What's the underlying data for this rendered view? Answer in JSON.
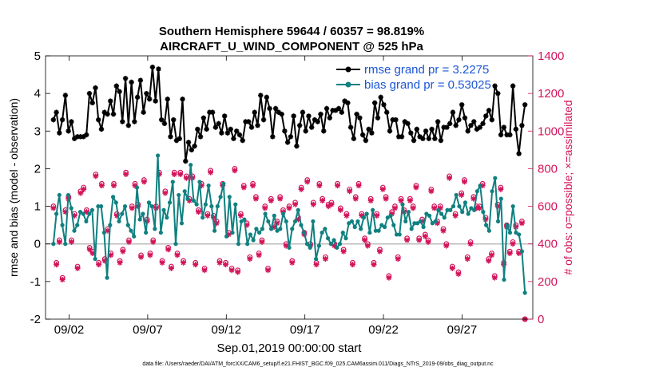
{
  "colors": {
    "rmse": "#000000",
    "bias": "#108080",
    "obs": "#d3145a",
    "legend_text": "#1b56d6",
    "zero_line": "#bbbbbb"
  },
  "chart_data": {
    "type": "line",
    "title": "Southern Hemisphere 59644 / 60357 = 98.819%",
    "subtitle": "AIRCRAFT_U_WIND_COMPONENT @ 525 hPa",
    "xlabel": "Sep.01,2019 00:00:00 start",
    "ylabel_left": "rmse and bias (model - observation)",
    "ylabel_right": "# of obs: o=possible; ×=assimilated",
    "footnote": "data file: /Users/raeder/DAI/ATM_forcXX/CAM6_setup/f.e21.FHIST_BGC.f09_025.CAM6assim.011/Diags_NTrS_2019-09/obs_diag_output.nc",
    "xlim": [
      0.5,
      31.5
    ],
    "ylim_left": [
      -2,
      5
    ],
    "ylim_right": [
      0,
      1400
    ],
    "x_ticks": [
      2,
      7,
      12,
      17,
      22,
      27
    ],
    "x_tick_labels": [
      "09/02",
      "09/07",
      "09/12",
      "09/17",
      "09/22",
      "09/27"
    ],
    "y_ticks_left": [
      -2,
      -1,
      0,
      1,
      2,
      3,
      4,
      5
    ],
    "y_tick_labels_left": [
      "-2",
      "-1",
      "0",
      "1",
      "2",
      "3",
      "4",
      "5"
    ],
    "y_ticks_right": [
      0,
      200,
      400,
      600,
      800,
      1000,
      1200,
      1400
    ],
    "y_tick_labels_right": [
      "0",
      "200",
      "400",
      "600",
      "800",
      "1000",
      "1200",
      "1400"
    ],
    "legend": {
      "position": "top-right",
      "entries": [
        "rmse grand pr = 3.2275",
        "bias grand pr = 0.53025"
      ]
    },
    "series": [
      {
        "name": "rmse",
        "axis": "left",
        "marker": "star",
        "values": [
          3.3,
          3.5,
          2.95,
          3.3,
          3.95,
          3.0,
          3.25,
          2.8,
          2.85,
          2.85,
          2.85,
          2.9,
          4.0,
          3.75,
          4.15,
          3.3,
          3.05,
          3.5,
          3.45,
          3.8,
          3.45,
          4.2,
          4.05,
          3.25,
          4.4,
          3.15,
          4.3,
          3.25,
          3.9,
          4.35,
          3.5,
          4.0,
          3.85,
          4.7,
          3.8,
          4.65,
          3.3,
          3.2,
          3.85,
          2.85,
          3.3,
          2.75,
          2.8,
          3.85,
          2.2,
          2.7,
          2.5,
          2.6,
          3.05,
          2.85,
          3.35,
          3.05,
          3.5,
          3.5,
          3.1,
          3.2,
          2.95,
          3.4,
          2.95,
          3.05,
          2.8,
          3.0,
          2.9,
          2.75,
          3.25,
          3.25,
          3.1,
          3.5,
          3.15,
          3.95,
          3.3,
          3.9,
          3.6,
          2.85,
          3.6,
          3.5,
          3.45,
          3.0,
          2.7,
          2.85,
          3.4,
          2.6,
          3.15,
          3.5,
          3.0,
          3.4,
          3.1,
          3.3,
          3.25,
          3.45,
          3.0,
          3.6,
          3.35,
          3.55,
          3.55,
          3.6,
          3.5,
          3.8,
          3.75,
          3.1,
          2.8,
          3.45,
          3.35,
          2.9,
          2.75,
          3.05,
          2.95,
          3.75,
          3.35,
          3.9,
          3.7,
          3.5,
          3.0,
          3.3,
          3.3,
          2.85,
          2.85,
          3.25,
          3.2,
          2.95,
          2.75,
          3.05,
          2.85,
          2.8,
          3.0,
          2.8,
          3.05,
          2.8,
          3.25,
          2.75,
          3.1,
          3.1,
          3.2,
          3.5,
          3.15,
          3.3,
          3.7,
          3.35,
          3.0,
          3.15,
          3.25,
          3.05,
          3.1,
          3.2,
          3.4,
          3.55,
          3.3,
          4.2,
          4.0,
          2.9,
          3.1,
          2.9,
          2.9,
          4.2,
          3.05,
          2.4,
          3.15,
          3.7
        ]
      },
      {
        "name": "bias",
        "axis": "left",
        "marker": "dot",
        "values": [
          0.0,
          0.8,
          1.3,
          0.5,
          0.0,
          1.3,
          0.95,
          0.35,
          0.5,
          0.85,
          0.8,
          0.6,
          0.8,
          0.9,
          -0.4,
          1.0,
          1.0,
          0.3,
          -0.9,
          0.5,
          1.25,
          1.1,
          0.6,
          0.8,
          1.0,
          0.5,
          0.35,
          0.2,
          1.5,
          0.65,
          0.8,
          0.3,
          1.1,
          1.0,
          0.4,
          2.35,
          0.3,
          0.9,
          0.7,
          1.1,
          1.65,
          0.0,
          1.3,
          0.55,
          1.4,
          1.2,
          2.1,
          1.15,
          1.05,
          1.65,
          0.7,
          1.05,
          1.55,
          1.0,
          0.35,
          1.0,
          1.25,
          1.6,
          0.2,
          1.25,
          0.3,
          1.05,
          0.0,
          0.6,
          0.65,
          0.0,
          0.25,
          0.1,
          0.4,
          0.3,
          0.4,
          0.8,
          0.6,
          0.4,
          0.75,
          0.35,
          0.4,
          0.8,
          0.6,
          -0.1,
          0.4,
          0.6,
          0.9,
          0.5,
          0.3,
          0.0,
          -0.1,
          0.6,
          -0.4,
          -0.05,
          0.3,
          0.4,
          0.15,
          0.0,
          0.1,
          -0.1,
          0.0,
          0.3,
          0.15,
          0.55,
          0.6,
          0.45,
          0.6,
          0.4,
          0.7,
          0.8,
          0.3,
          0.9,
          0.35,
          0.35,
          0.5,
          0.45,
          0.7,
          0.75,
          0.5,
          0.25,
          0.25,
          1.05,
          0.6,
          0.85,
          0.4,
          0.55,
          0.55,
          0.6,
          0.45,
          0.8,
          0.75,
          0.55,
          0.6,
          0.9,
          0.8,
          0.7,
          0.9,
          0.9,
          1.0,
          1.3,
          1.0,
          0.85,
          1.1,
          0.8,
          0.95,
          0.9,
          1.4,
          1.55,
          0.85,
          0.5,
          0.35,
          1.4,
          1.75,
          0.6,
          1.2,
          -0.95,
          0.5,
          0.3,
          1.0,
          0.3,
          0.25,
          -0.2,
          -1.3
        ]
      },
      {
        "name": "obs possible",
        "axis": "right",
        "marker": "circle",
        "values": [
          600,
          300,
          420,
          220,
          580,
          650,
          420,
          560,
          280,
          680,
          700,
          580,
          380,
          360,
          770,
          300,
          720,
          320,
          480,
          350,
          720,
          560,
          310,
          370,
          780,
          420,
          600,
          720,
          610,
          340,
          740,
          530,
          350,
          420,
          600,
          780,
          310,
          680,
          380,
          280,
          780,
          350,
          780,
          310,
          760,
          640,
          760,
          300,
          580,
          720,
          270,
          560,
          790,
          550,
          520,
          310,
          720,
          300,
          460,
          270,
          800,
          260,
          560,
          710,
          510,
          330,
          720,
          650,
          350,
          420,
          600,
          270,
          640,
          500,
          520,
          650,
          580,
          400,
          600,
          310,
          620,
          540,
          700,
          460,
          740,
          400,
          620,
          300,
          720,
          640,
          330,
          610,
          620,
          400,
          720,
          590,
          370,
          560,
          690,
          300,
          650,
          720,
          560,
          430,
          400,
          640,
          300,
          560,
          370,
          700,
          650,
          230,
          570,
          600,
          330,
          640,
          580,
          430,
          640,
          600,
          710,
          430,
          530,
          450,
          420,
          690,
          600,
          520,
          600,
          480,
          400,
          760,
          280,
          560,
          250,
          670,
          740,
          330,
          410,
          650,
          600,
          600,
          720,
          540,
          320,
          350,
          230,
          610,
          700,
          300,
          500,
          360,
          410,
          500,
          360,
          520,
          0
        ]
      },
      {
        "name": "obs assimilated",
        "axis": "right",
        "marker": "asterisk",
        "values": [
          590,
          290,
          410,
          210,
          570,
          640,
          410,
          550,
          270,
          670,
          690,
          570,
          370,
          350,
          760,
          290,
          710,
          310,
          470,
          340,
          710,
          550,
          300,
          360,
          770,
          410,
          590,
          710,
          600,
          330,
          730,
          520,
          340,
          410,
          590,
          770,
          300,
          670,
          370,
          270,
          770,
          340,
          770,
          300,
          750,
          630,
          750,
          290,
          570,
          710,
          260,
          550,
          780,
          540,
          510,
          300,
          710,
          290,
          450,
          260,
          790,
          250,
          550,
          700,
          500,
          320,
          710,
          640,
          340,
          410,
          590,
          260,
          630,
          490,
          510,
          640,
          570,
          390,
          590,
          300,
          610,
          530,
          690,
          450,
          730,
          390,
          610,
          290,
          710,
          630,
          320,
          600,
          610,
          390,
          710,
          580,
          360,
          550,
          680,
          290,
          640,
          710,
          550,
          420,
          390,
          630,
          290,
          550,
          360,
          690,
          640,
          220,
          560,
          590,
          320,
          630,
          570,
          420,
          630,
          590,
          700,
          420,
          520,
          440,
          410,
          680,
          590,
          510,
          590,
          470,
          390,
          750,
          270,
          550,
          240,
          660,
          730,
          320,
          400,
          640,
          590,
          590,
          710,
          530,
          310,
          340,
          220,
          600,
          690,
          290,
          490,
          350,
          400,
          490,
          350,
          510,
          0
        ]
      }
    ]
  }
}
